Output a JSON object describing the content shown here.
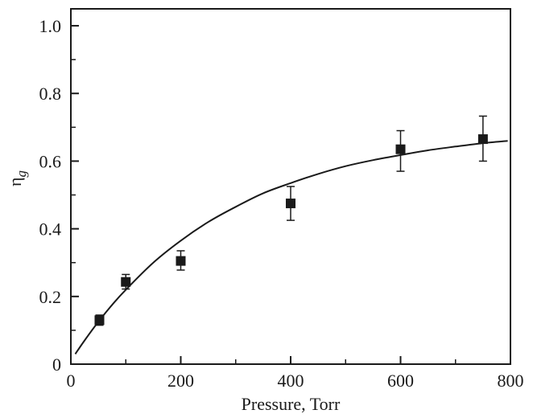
{
  "chart_data": {
    "type": "scatter",
    "title": "",
    "xlabel": "Pressure, Torr",
    "ylabel": {
      "main": "η",
      "sub": "g"
    },
    "xlim": [
      0,
      800
    ],
    "ylim": [
      0,
      1.05
    ],
    "x_ticks": [
      0,
      200,
      400,
      600,
      800
    ],
    "x_tick_labels": [
      "0",
      "200",
      "400",
      "600",
      "800"
    ],
    "x_minor_ticks": [
      100,
      300,
      500,
      700
    ],
    "y_ticks": [
      0,
      0.2,
      0.4,
      0.6,
      0.8,
      1.0
    ],
    "y_tick_labels": [
      "0",
      "0.2",
      "0.4",
      "0.6",
      "0.8",
      "1.0"
    ],
    "y_minor_ticks": [
      0.1,
      0.3,
      0.5,
      0.7,
      0.9
    ],
    "grid": false,
    "legend": "none",
    "series": [
      {
        "kind": "points-with-error-bars",
        "marker": "square",
        "color": "#1a1a1a",
        "points": [
          {
            "x": 52,
            "y": 0.13,
            "err_low": 0.115,
            "err_high": 0.145
          },
          {
            "x": 100,
            "y": 0.243,
            "err_low": 0.222,
            "err_high": 0.265
          },
          {
            "x": 200,
            "y": 0.305,
            "err_low": 0.278,
            "err_high": 0.335
          },
          {
            "x": 400,
            "y": 0.475,
            "err_low": 0.425,
            "err_high": 0.525
          },
          {
            "x": 600,
            "y": 0.635,
            "err_low": 0.57,
            "err_high": 0.69
          },
          {
            "x": 750,
            "y": 0.665,
            "err_low": 0.6,
            "err_high": 0.733
          }
        ]
      },
      {
        "kind": "fit-curve",
        "color": "#1a1a1a",
        "x": [
          8,
          25,
          50,
          75,
          100,
          150,
          200,
          250,
          300,
          350,
          400,
          450,
          500,
          550,
          600,
          650,
          700,
          750,
          795
        ],
        "y": [
          0.03,
          0.07,
          0.125,
          0.175,
          0.22,
          0.3,
          0.365,
          0.42,
          0.465,
          0.505,
          0.535,
          0.562,
          0.585,
          0.603,
          0.618,
          0.632,
          0.643,
          0.653,
          0.66
        ]
      }
    ]
  }
}
